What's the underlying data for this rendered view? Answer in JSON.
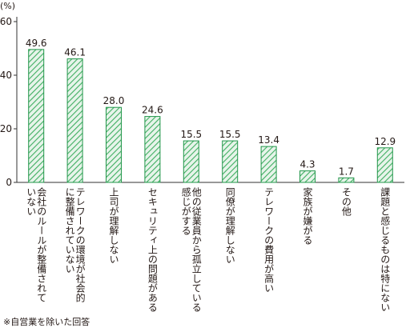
{
  "chart_data": {
    "type": "bar",
    "unit_label": "(%)",
    "categories": [
      "会社のルールが整備されていない",
      "テレワークの環境が社会的に整備されていない",
      "上司が理解しない",
      "セキュリティ上の問題がある",
      "他の従業員から孤立している感じがする",
      "同僚が理解しない",
      "テレワークの費用が高い",
      "家族が嫌がる",
      "その他",
      "課題と感じるものは特にない"
    ],
    "category_lines": [
      [
        "会社のルールが整備されて",
        "いない"
      ],
      [
        "テレワークの環境が社会的",
        "に整備されていない"
      ],
      [
        "上司が理解しない"
      ],
      [
        "セキュリティ上の問題がある"
      ],
      [
        "他の従業員から孤立している",
        "感じがする"
      ],
      [
        "同僚が理解しない"
      ],
      [
        "テレワークの費用が高い"
      ],
      [
        "家族が嫌がる"
      ],
      [
        "その他"
      ],
      [
        "課題と感じるものは特にない"
      ]
    ],
    "values": [
      49.6,
      46.1,
      28.0,
      24.6,
      15.5,
      15.5,
      13.4,
      4.3,
      1.7,
      12.9
    ],
    "value_labels": [
      "49.6",
      "46.1",
      "28.0",
      "24.6",
      "15.5",
      "15.5",
      "13.4",
      "4.3",
      "1.7",
      "12.9"
    ],
    "ylim": [
      0,
      60
    ],
    "yticks": [
      0,
      20,
      40,
      60
    ],
    "grid": false,
    "colors": {
      "bar_fill": "#e7f4ea",
      "bar_stripe": "#3fae61",
      "bar_edge": "#22964a",
      "axis": "#333333"
    }
  },
  "footnote": "※自営業を除いた回答"
}
